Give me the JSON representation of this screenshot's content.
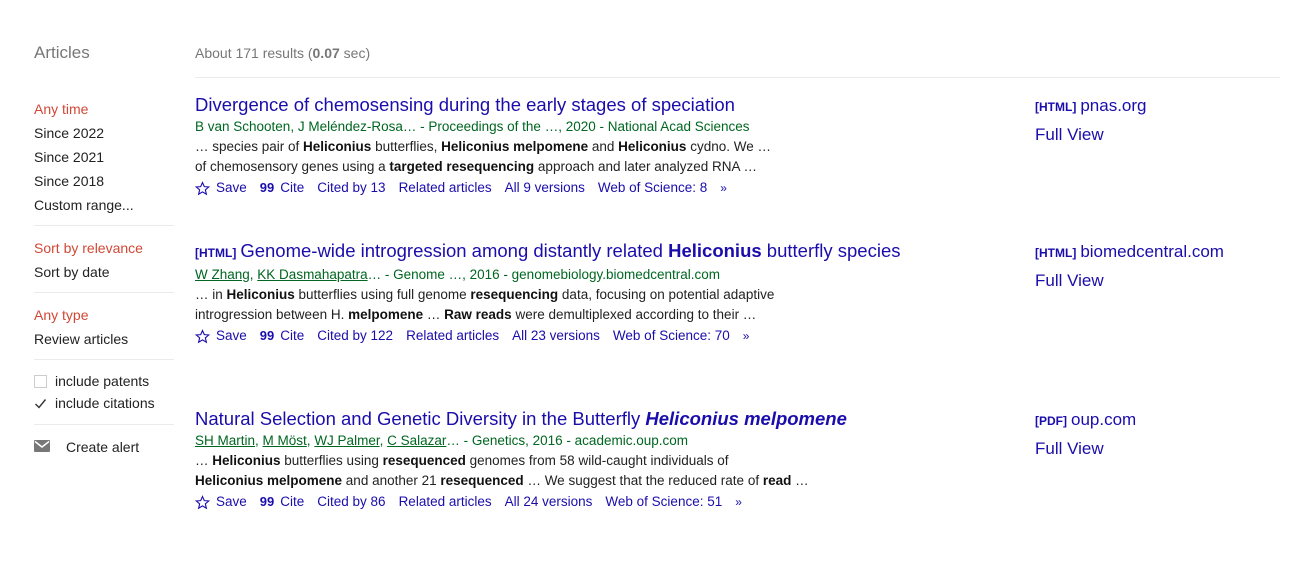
{
  "header": {
    "section": "Articles",
    "results_prefix": "About 171 results (",
    "results_time": "0.07",
    "results_suffix": " sec)"
  },
  "sidebar": {
    "time_filters": [
      "Any time",
      "Since 2022",
      "Since 2021",
      "Since 2018",
      "Custom range..."
    ],
    "sort_filters": [
      "Sort by relevance",
      "Sort by date"
    ],
    "type_filters": [
      "Any type",
      "Review articles"
    ],
    "include_patents": {
      "label": "include patents",
      "checked": false
    },
    "include_citations": {
      "label": "include citations",
      "checked": true
    },
    "create_alert": "Create alert",
    "selected_color": "#d14836"
  },
  "results": [
    {
      "title": "Divergence of chemosensing during the early stages of speciation",
      "meta": "B van Schooten, J Meléndez-Rosa… - Proceedings of the …, 2020 - National Acad Sciences",
      "snippet1_parts": [
        "… species pair of ",
        "Heliconius",
        " butterflies, ",
        "Heliconius melpomene",
        " and ",
        "Heliconius",
        " cydno. We …"
      ],
      "snippet2_parts": [
        "of chemosensory genes using a ",
        "targeted resequencing",
        " approach and later analyzed RNA …"
      ],
      "links": {
        "save": "Save",
        "cite": "Cite",
        "cited_by": "Cited by 13",
        "related": "Related articles",
        "versions": "All 9 versions",
        "wos": "Web of Science: 8"
      },
      "side_tag": "[HTML]",
      "side_domain": "pnas.org",
      "side_full": "Full View"
    },
    {
      "title_tag": "[HTML]",
      "title_parts": [
        "Genome-wide introgression among distantly related ",
        "Heliconius",
        " butterfly species"
      ],
      "authors": [
        "W Zhang",
        "KK Dasmahapatra"
      ],
      "meta_rest": "… - Genome …, 2016 - genomebiology.biomedcentral.com",
      "snippet1_parts": [
        "… in ",
        "Heliconius",
        " butterflies using full genome ",
        "resequencing",
        " data, focusing on potential adaptive"
      ],
      "snippet2_parts": [
        "introgression between H. ",
        "melpomene",
        " … ",
        "Raw reads",
        " were demultiplexed according to their …"
      ],
      "links": {
        "save": "Save",
        "cite": "Cite",
        "cited_by": "Cited by 122",
        "related": "Related articles",
        "versions": "All 23 versions",
        "wos": "Web of Science: 70"
      },
      "side_tag": "[HTML]",
      "side_domain": "biomedcentral.com",
      "side_full": "Full View"
    },
    {
      "title_parts": [
        "Natural Selection and Genetic Diversity in the Butterfly ",
        "Heliconius melpomene"
      ],
      "authors": [
        "SH Martin",
        "M Möst",
        "WJ Palmer",
        "C Salazar"
      ],
      "meta_rest": "… - Genetics, 2016 - academic.oup.com",
      "snippet1_parts": [
        "… ",
        "Heliconius",
        " butterflies using ",
        "resequenced",
        " genomes from 58 wild-caught individuals of"
      ],
      "snippet2_parts": [
        "Heliconius melpomene",
        " and another 21 ",
        "resequenced",
        " … We suggest that the reduced rate of ",
        "read",
        " …"
      ],
      "links": {
        "save": "Save",
        "cite": "Cite",
        "cited_by": "Cited by 86",
        "related": "Related articles",
        "versions": "All 24 versions",
        "wos": "Web of Science: 51"
      },
      "side_tag": "[PDF]",
      "side_domain": "oup.com",
      "side_full": "Full View"
    }
  ],
  "colors": {
    "link": "#1a0dab",
    "meta": "#006621",
    "muted": "#777777"
  }
}
